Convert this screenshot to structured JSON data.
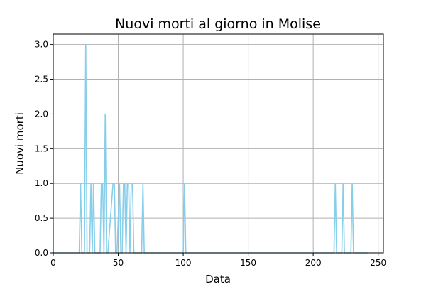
{
  "chart_data": {
    "type": "line",
    "title": "Nuovi morti al giorno in Molise",
    "xlabel": "Data",
    "ylabel": "Nuovi morti",
    "xlim": [
      0,
      254
    ],
    "ylim": [
      0,
      3.15
    ],
    "xticks": [
      0,
      50,
      100,
      150,
      200,
      250
    ],
    "yticks": [
      0.0,
      0.5,
      1.0,
      1.5,
      2.0,
      2.5,
      3.0
    ],
    "xtick_labels": [
      "0",
      "50",
      "100",
      "150",
      "200",
      "250"
    ],
    "ytick_labels": [
      "0.0",
      "0.5",
      "1.0",
      "1.5",
      "2.0",
      "2.5",
      "3.0"
    ],
    "grid": true,
    "series": [
      {
        "color": "#87ceeb",
        "x": [
          0,
          20,
          21,
          22,
          24,
          25,
          26,
          28,
          29,
          30,
          31,
          32,
          36,
          37,
          38,
          39,
          40,
          41,
          42,
          46,
          47,
          48,
          49,
          51,
          52,
          53,
          54,
          55,
          56,
          57,
          58,
          59,
          60,
          61,
          62,
          68,
          69,
          70,
          100,
          101,
          102,
          216,
          217,
          218,
          222,
          223,
          224,
          229,
          230,
          231,
          242
        ],
        "y": [
          0,
          0,
          1,
          0,
          0,
          3,
          0,
          0,
          1,
          0,
          1,
          0,
          0,
          1,
          1,
          0,
          2,
          0,
          0,
          1,
          1,
          0,
          0,
          1,
          0,
          0,
          1,
          1,
          0,
          1,
          1,
          0,
          1,
          1,
          0,
          0,
          1,
          0,
          0,
          1,
          0,
          0,
          1,
          0,
          0,
          1,
          0,
          0,
          1,
          0,
          0
        ]
      }
    ]
  }
}
